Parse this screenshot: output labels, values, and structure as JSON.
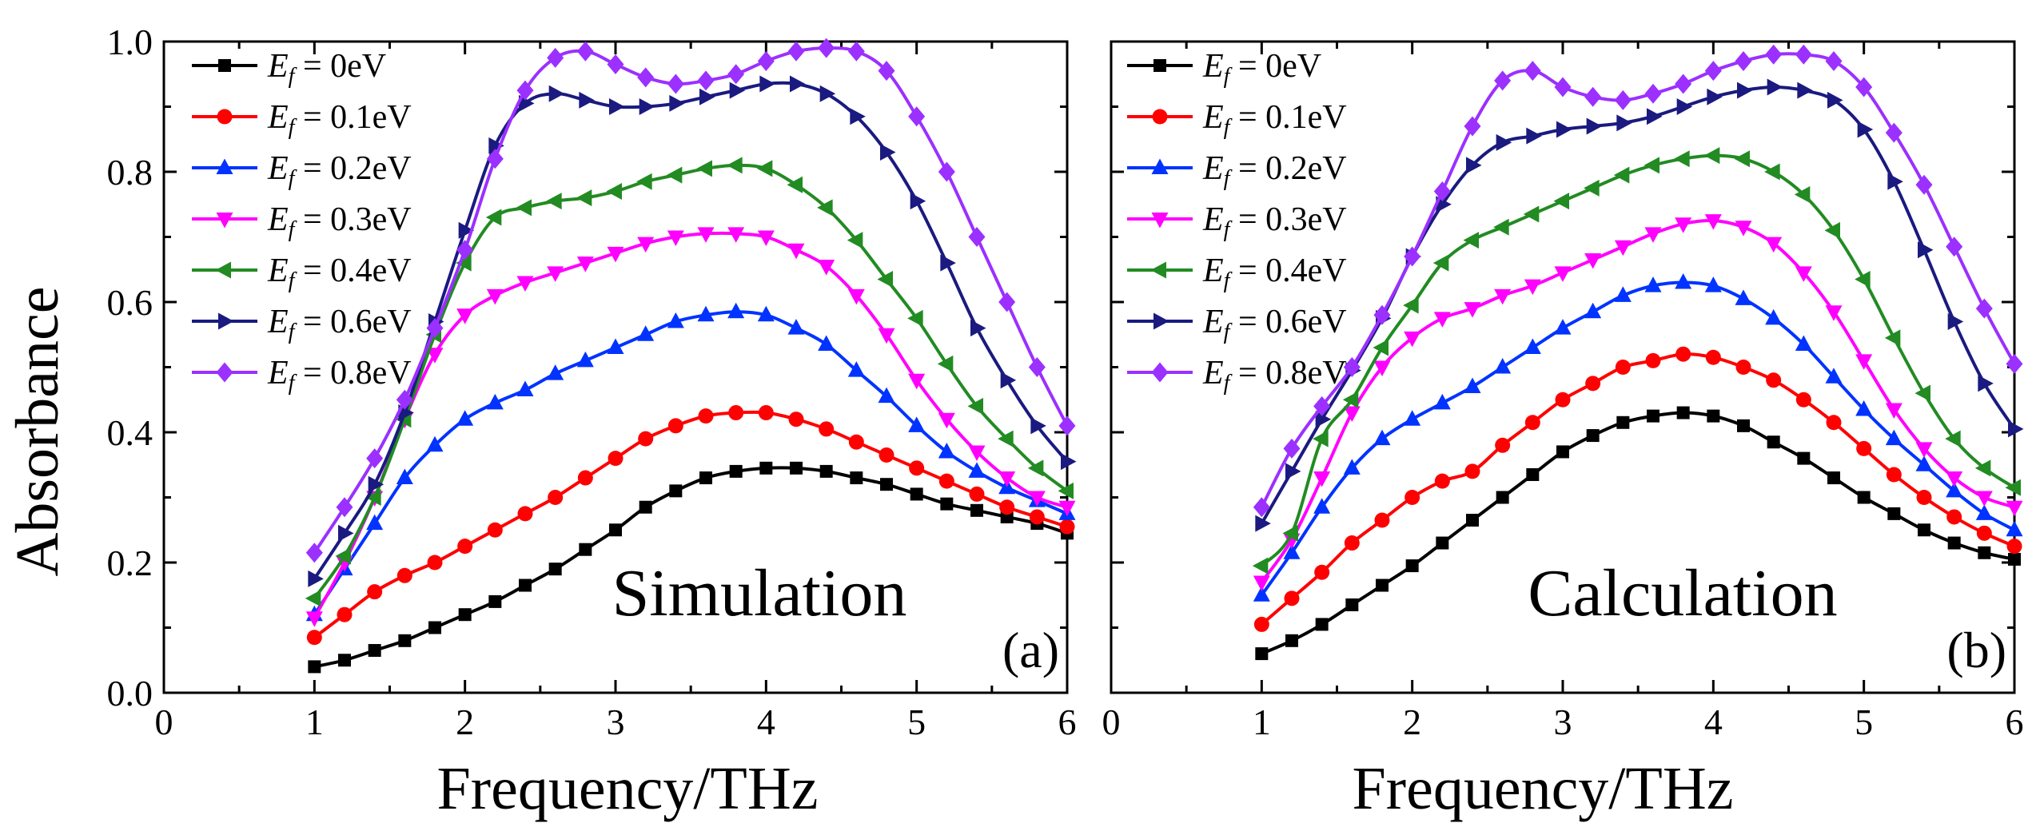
{
  "figure_labels": {
    "ylabel_text": "Absorbance",
    "xlabel_text": "Frequency/THz"
  },
  "chart_data": [
    {
      "type": "line",
      "panel_label": "(a)",
      "annotation": "Simulation",
      "xlabel": "Frequency/THz",
      "ylabel": "Absorbance",
      "xlim": [
        0,
        6
      ],
      "ylim": [
        0,
        1.0
      ],
      "xticks": [
        "0",
        "1",
        "2",
        "3",
        "4",
        "5",
        "6"
      ],
      "yticks": [
        "0.0",
        "0.2",
        "0.4",
        "0.6",
        "0.8",
        "1.0"
      ],
      "x": [
        1.0,
        1.2,
        1.4,
        1.6,
        1.8,
        2.0,
        2.2,
        2.4,
        2.6,
        2.8,
        3.0,
        3.2,
        3.4,
        3.6,
        3.8,
        4.0,
        4.2,
        4.4,
        4.6,
        4.8,
        5.0,
        5.2,
        5.4,
        5.6,
        5.8,
        6.0
      ],
      "series": [
        {
          "name": "E_f = 0eV",
          "legend_main": "E",
          "legend_sub": "f",
          "legend_rest": " = 0eV",
          "color": "#000000",
          "marker": "square",
          "values": [
            0.04,
            0.05,
            0.065,
            0.08,
            0.1,
            0.12,
            0.14,
            0.165,
            0.19,
            0.22,
            0.25,
            0.285,
            0.31,
            0.33,
            0.34,
            0.345,
            0.345,
            0.34,
            0.33,
            0.32,
            0.305,
            0.29,
            0.28,
            0.27,
            0.26,
            0.245
          ]
        },
        {
          "name": "E_f = 0.1eV",
          "legend_main": "E",
          "legend_sub": "f",
          "legend_rest": " = 0.1eV",
          "color": "#ff0000",
          "marker": "circle",
          "values": [
            0.085,
            0.12,
            0.155,
            0.18,
            0.2,
            0.225,
            0.25,
            0.275,
            0.3,
            0.33,
            0.36,
            0.39,
            0.41,
            0.425,
            0.43,
            0.43,
            0.42,
            0.405,
            0.385,
            0.365,
            0.345,
            0.325,
            0.305,
            0.285,
            0.27,
            0.255
          ]
        },
        {
          "name": "E_f = 0.2eV",
          "legend_main": "E",
          "legend_sub": "f",
          "legend_rest": " = 0.2eV",
          "color": "#0033ff",
          "marker": "triangle-up",
          "values": [
            0.12,
            0.19,
            0.26,
            0.33,
            0.38,
            0.42,
            0.445,
            0.465,
            0.49,
            0.51,
            0.53,
            0.55,
            0.57,
            0.58,
            0.585,
            0.58,
            0.56,
            0.535,
            0.495,
            0.455,
            0.41,
            0.37,
            0.34,
            0.315,
            0.295,
            0.275
          ]
        },
        {
          "name": "E_f = 0.3eV",
          "legend_main": "E",
          "legend_sub": "f",
          "legend_rest": " = 0.3eV",
          "color": "#ff00ff",
          "marker": "triangle-down",
          "values": [
            0.115,
            0.2,
            0.3,
            0.42,
            0.52,
            0.58,
            0.61,
            0.63,
            0.645,
            0.66,
            0.675,
            0.69,
            0.7,
            0.705,
            0.705,
            0.7,
            0.68,
            0.655,
            0.61,
            0.55,
            0.48,
            0.42,
            0.37,
            0.33,
            0.3,
            0.285
          ]
        },
        {
          "name": "E_f = 0.4eV",
          "legend_main": "E",
          "legend_sub": "f",
          "legend_rest": " = 0.4eV",
          "color": "#228b22",
          "marker": "triangle-left",
          "values": [
            0.145,
            0.21,
            0.3,
            0.42,
            0.55,
            0.66,
            0.73,
            0.745,
            0.755,
            0.76,
            0.77,
            0.785,
            0.795,
            0.805,
            0.81,
            0.805,
            0.78,
            0.745,
            0.695,
            0.635,
            0.575,
            0.505,
            0.44,
            0.39,
            0.345,
            0.31
          ]
        },
        {
          "name": "E_f = 0.6eV",
          "legend_main": "E",
          "legend_sub": "f",
          "legend_rest": " = 0.6eV",
          "color": "#1a1a80",
          "marker": "triangle-right",
          "values": [
            0.175,
            0.245,
            0.32,
            0.43,
            0.57,
            0.71,
            0.84,
            0.905,
            0.92,
            0.91,
            0.9,
            0.9,
            0.905,
            0.915,
            0.925,
            0.935,
            0.935,
            0.92,
            0.885,
            0.83,
            0.755,
            0.66,
            0.56,
            0.48,
            0.41,
            0.355
          ]
        },
        {
          "name": "E_f = 0.8eV",
          "legend_main": "E",
          "legend_sub": "f",
          "legend_rest": " = 0.8eV",
          "color": "#9b30ff",
          "marker": "diamond",
          "values": [
            0.215,
            0.285,
            0.36,
            0.45,
            0.56,
            0.68,
            0.82,
            0.925,
            0.975,
            0.985,
            0.965,
            0.945,
            0.935,
            0.94,
            0.95,
            0.97,
            0.985,
            0.99,
            0.985,
            0.955,
            0.885,
            0.8,
            0.7,
            0.6,
            0.5,
            0.41
          ]
        }
      ]
    },
    {
      "type": "line",
      "panel_label": "(b)",
      "annotation": "Calculation",
      "xlabel": "Frequency/THz",
      "ylabel": "Absorbance",
      "xlim": [
        0,
        6
      ],
      "ylim": [
        0,
        1.0
      ],
      "xticks": [
        "0",
        "1",
        "2",
        "3",
        "4",
        "5",
        "6"
      ],
      "yticks": [
        "0.0",
        "0.2",
        "0.4",
        "0.6",
        "0.8",
        "1.0"
      ],
      "x": [
        1.0,
        1.2,
        1.4,
        1.6,
        1.8,
        2.0,
        2.2,
        2.4,
        2.6,
        2.8,
        3.0,
        3.2,
        3.4,
        3.6,
        3.8,
        4.0,
        4.2,
        4.4,
        4.6,
        4.8,
        5.0,
        5.2,
        5.4,
        5.6,
        5.8,
        6.0
      ],
      "series": [
        {
          "name": "E_f = 0eV",
          "legend_main": "E",
          "legend_sub": "f",
          "legend_rest": " = 0eV",
          "color": "#000000",
          "marker": "square",
          "values": [
            0.06,
            0.08,
            0.105,
            0.135,
            0.165,
            0.195,
            0.23,
            0.265,
            0.3,
            0.335,
            0.37,
            0.395,
            0.415,
            0.425,
            0.43,
            0.425,
            0.41,
            0.385,
            0.36,
            0.33,
            0.3,
            0.275,
            0.25,
            0.23,
            0.215,
            0.205
          ]
        },
        {
          "name": "E_f = 0.1eV",
          "legend_main": "E",
          "legend_sub": "f",
          "legend_rest": " = 0.1eV",
          "color": "#ff0000",
          "marker": "circle",
          "values": [
            0.105,
            0.145,
            0.185,
            0.23,
            0.265,
            0.3,
            0.325,
            0.34,
            0.38,
            0.415,
            0.45,
            0.475,
            0.5,
            0.51,
            0.52,
            0.515,
            0.5,
            0.48,
            0.45,
            0.415,
            0.375,
            0.335,
            0.3,
            0.27,
            0.245,
            0.225
          ]
        },
        {
          "name": "E_f = 0.2eV",
          "legend_main": "E",
          "legend_sub": "f",
          "legend_rest": " = 0.2eV",
          "color": "#0033ff",
          "marker": "triangle-up",
          "values": [
            0.15,
            0.215,
            0.285,
            0.345,
            0.39,
            0.42,
            0.445,
            0.47,
            0.5,
            0.53,
            0.56,
            0.585,
            0.61,
            0.625,
            0.63,
            0.625,
            0.605,
            0.575,
            0.535,
            0.485,
            0.435,
            0.39,
            0.35,
            0.31,
            0.275,
            0.25
          ]
        },
        {
          "name": "E_f = 0.3eV",
          "legend_main": "E",
          "legend_sub": "f",
          "legend_rest": " = 0.3eV",
          "color": "#ff00ff",
          "marker": "triangle-down",
          "values": [
            0.17,
            0.235,
            0.33,
            0.43,
            0.5,
            0.545,
            0.575,
            0.59,
            0.61,
            0.625,
            0.645,
            0.665,
            0.685,
            0.705,
            0.72,
            0.725,
            0.715,
            0.69,
            0.645,
            0.585,
            0.51,
            0.435,
            0.375,
            0.33,
            0.3,
            0.285
          ]
        },
        {
          "name": "E_f = 0.4eV",
          "legend_main": "E",
          "legend_sub": "f",
          "legend_rest": " = 0.4eV",
          "color": "#228b22",
          "marker": "triangle-left",
          "values": [
            0.195,
            0.245,
            0.39,
            0.45,
            0.53,
            0.595,
            0.66,
            0.695,
            0.715,
            0.735,
            0.755,
            0.775,
            0.795,
            0.81,
            0.82,
            0.825,
            0.82,
            0.8,
            0.765,
            0.71,
            0.635,
            0.545,
            0.46,
            0.39,
            0.345,
            0.315
          ]
        },
        {
          "name": "E_f = 0.6eV",
          "legend_main": "E",
          "legend_sub": "f",
          "legend_rest": " = 0.6eV",
          "color": "#1a1a80",
          "marker": "triangle-right",
          "values": [
            0.26,
            0.34,
            0.42,
            0.495,
            0.575,
            0.67,
            0.75,
            0.81,
            0.845,
            0.855,
            0.865,
            0.87,
            0.875,
            0.885,
            0.9,
            0.915,
            0.925,
            0.93,
            0.925,
            0.91,
            0.865,
            0.785,
            0.68,
            0.57,
            0.475,
            0.405
          ]
        },
        {
          "name": "E_f = 0.8eV",
          "legend_main": "E",
          "legend_sub": "f",
          "legend_rest": " = 0.8eV",
          "color": "#9b30ff",
          "marker": "diamond",
          "values": [
            0.285,
            0.375,
            0.44,
            0.5,
            0.58,
            0.67,
            0.77,
            0.87,
            0.94,
            0.955,
            0.93,
            0.915,
            0.91,
            0.92,
            0.935,
            0.955,
            0.97,
            0.98,
            0.98,
            0.97,
            0.93,
            0.86,
            0.78,
            0.685,
            0.59,
            0.505
          ]
        }
      ]
    }
  ]
}
